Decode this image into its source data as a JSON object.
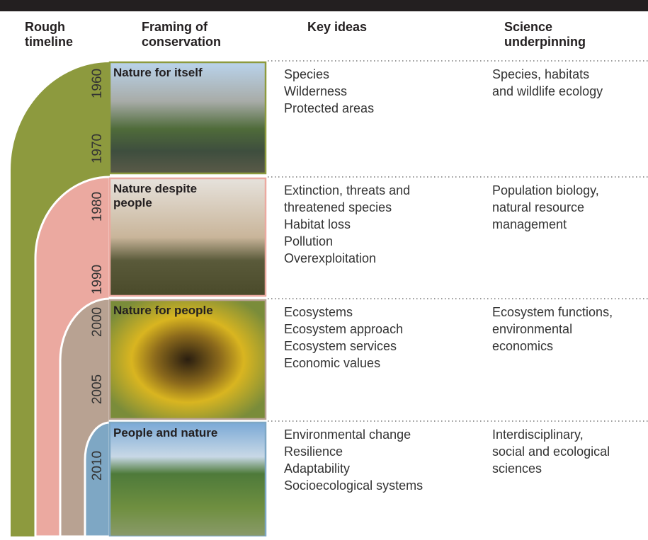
{
  "headers": {
    "timeline": [
      "Rough",
      "timeline"
    ],
    "framing": [
      "Framing of",
      "conservation"
    ],
    "key_ideas": [
      "Key ideas"
    ],
    "science": [
      "Science",
      "underpinning"
    ]
  },
  "rows": [
    {
      "years": [
        "1960",
        "1970"
      ],
      "framing": "Nature for itself",
      "key_ideas": [
        "Species",
        "Wilderness",
        "Protected areas"
      ],
      "science": [
        "Species, habitats",
        "and wildlife ecology"
      ]
    },
    {
      "years": [
        "1980",
        "1990"
      ],
      "framing": [
        "Nature despite",
        "people"
      ],
      "key_ideas": [
        "Extinction, threats and",
        "threatened species",
        "Habitat loss",
        "Pollution",
        "Overexploitation"
      ],
      "science": [
        "Population biology,",
        "natural resource",
        "management"
      ]
    },
    {
      "years": [
        "2000",
        "2005"
      ],
      "framing": "Nature for people",
      "key_ideas": [
        "Ecosystems",
        "Ecosystem approach",
        "Ecosystem services",
        "Economic values"
      ],
      "science": [
        "Ecosystem functions,",
        "environmental",
        "economics"
      ]
    },
    {
      "years": [
        "2010"
      ],
      "framing": "People and nature",
      "key_ideas": [
        "Environmental change",
        "Resilience",
        "Adaptability",
        "Socioecological systems"
      ],
      "science": [
        "Interdisciplinary,",
        "social and ecological",
        "sciences"
      ]
    }
  ]
}
